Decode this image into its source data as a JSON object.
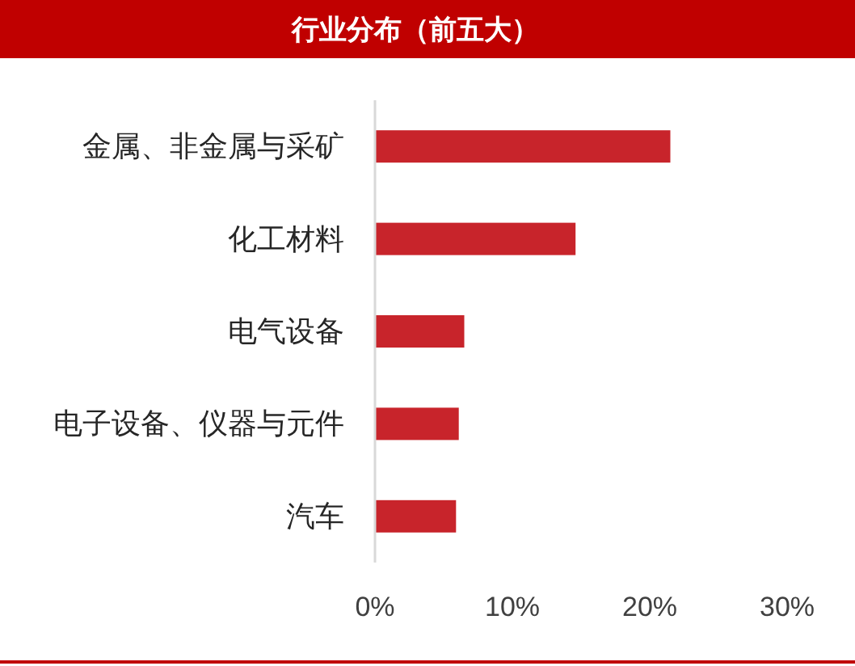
{
  "chart_data": {
    "type": "bar",
    "orientation": "horizontal",
    "title": "行业分布（前五大）",
    "categories": [
      "金属、非金属与采矿",
      "化工材料",
      "电气设备",
      "电子设备、仪器与元件",
      "汽车"
    ],
    "values": [
      21.5,
      14.6,
      6.5,
      6.1,
      5.9
    ],
    "color": "#c8242b",
    "xlim": [
      0,
      30
    ],
    "xticks": [
      {
        "value": 0,
        "label": "0%"
      },
      {
        "value": 10,
        "label": "10%"
      },
      {
        "value": 20,
        "label": "20%"
      },
      {
        "value": 30,
        "label": "30%"
      }
    ]
  }
}
